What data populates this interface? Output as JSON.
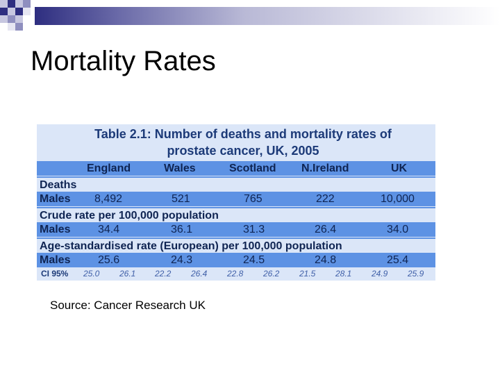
{
  "slide": {
    "title": "Mortality Rates",
    "source": "Source: Cancer Research UK"
  },
  "table": {
    "caption_line1": "Table 2.1: Number of deaths and mortality rates of",
    "caption_line2": "prostate cancer, UK, 2005",
    "columns": [
      "England",
      "Wales",
      "Scotland",
      "N.Ireland",
      "UK"
    ],
    "sections": [
      {
        "heading": "Deaths",
        "row_label": "Males",
        "values": [
          "8,492",
          "521",
          "765",
          "222",
          "10,000"
        ]
      },
      {
        "heading": "Crude rate per 100,000 population",
        "row_label": "Males",
        "values": [
          "34.4",
          "36.1",
          "31.3",
          "26.4",
          "34.0"
        ]
      },
      {
        "heading": "Age-standardised rate (European) per 100,000 population",
        "row_label": "Males",
        "values": [
          "25.6",
          "24.3",
          "24.5",
          "24.8",
          "25.4"
        ]
      }
    ],
    "ci_label": "CI 95%",
    "ci_values": [
      "25.0",
      "26.1",
      "22.2",
      "26.4",
      "22.8",
      "26.2",
      "21.5",
      "28.1",
      "24.9",
      "25.9"
    ]
  },
  "colors": {
    "table_bg": "#dbe6f8",
    "table_accent": "#5d92e4",
    "text_navy": "#1c3a78"
  }
}
